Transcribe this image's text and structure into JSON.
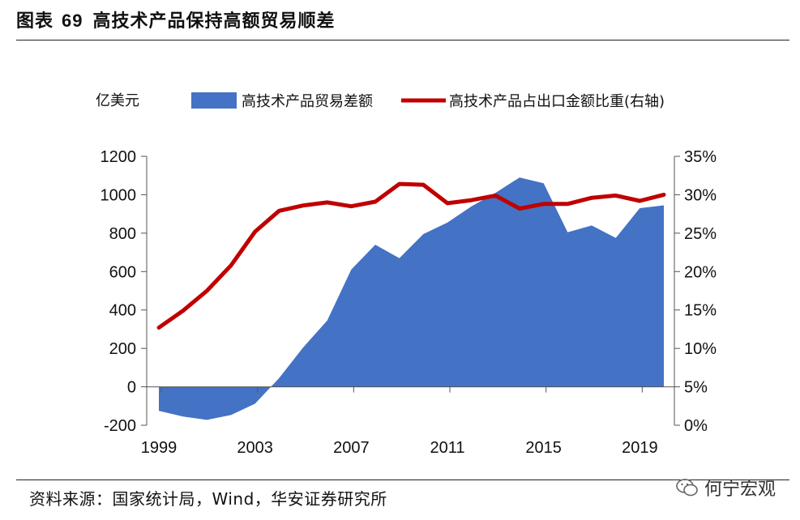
{
  "header": {
    "prefix": "图表",
    "number": "69",
    "title": "高技术产品保持高额贸易顺差"
  },
  "footer": {
    "source": "资料来源：国家统计局，Wind，华安证券研究所",
    "watermark": "何宁宏观"
  },
  "colors": {
    "area": "#4472C4",
    "line": "#C00000"
  },
  "chart_data": {
    "type": "area",
    "title": "高技术产品保持高额贸易顺差",
    "ylabel": "亿美元",
    "y2label": "",
    "x": [
      1999,
      2000,
      2001,
      2002,
      2003,
      2004,
      2005,
      2006,
      2007,
      2008,
      2009,
      2010,
      2011,
      2012,
      2013,
      2014,
      2015,
      2016,
      2017,
      2018,
      2019,
      2020
    ],
    "xticks": [
      1999,
      2003,
      2007,
      2011,
      2015,
      2019
    ],
    "ylim": [
      -200,
      1200
    ],
    "yticks": [
      -200,
      0,
      200,
      400,
      600,
      800,
      1000,
      1200
    ],
    "y2lim": [
      0,
      35
    ],
    "y2ticks": [
      "0%",
      "5%",
      "10%",
      "15%",
      "20%",
      "25%",
      "30%",
      "35%"
    ],
    "legend": [
      "高技术产品贸易差额",
      "高技术产品占出口金额比重(右轴)"
    ],
    "legend_position": "top",
    "series": [
      {
        "name": "高技术产品贸易差额",
        "type": "area",
        "axis": "left",
        "values": [
          -125,
          -155,
          -172,
          -147,
          -88,
          45,
          205,
          345,
          610,
          740,
          670,
          795,
          855,
          940,
          1010,
          1090,
          1060,
          805,
          840,
          775,
          930,
          945
        ]
      },
      {
        "name": "高技术产品占出口金额比重(右轴)",
        "type": "line",
        "axis": "right",
        "values": [
          12.7,
          14.9,
          17.5,
          20.8,
          25.2,
          27.9,
          28.6,
          29.0,
          28.5,
          29.1,
          31.4,
          31.3,
          28.9,
          29.3,
          29.9,
          28.2,
          28.8,
          28.8,
          29.6,
          29.9,
          29.2,
          30.0
        ]
      }
    ]
  }
}
